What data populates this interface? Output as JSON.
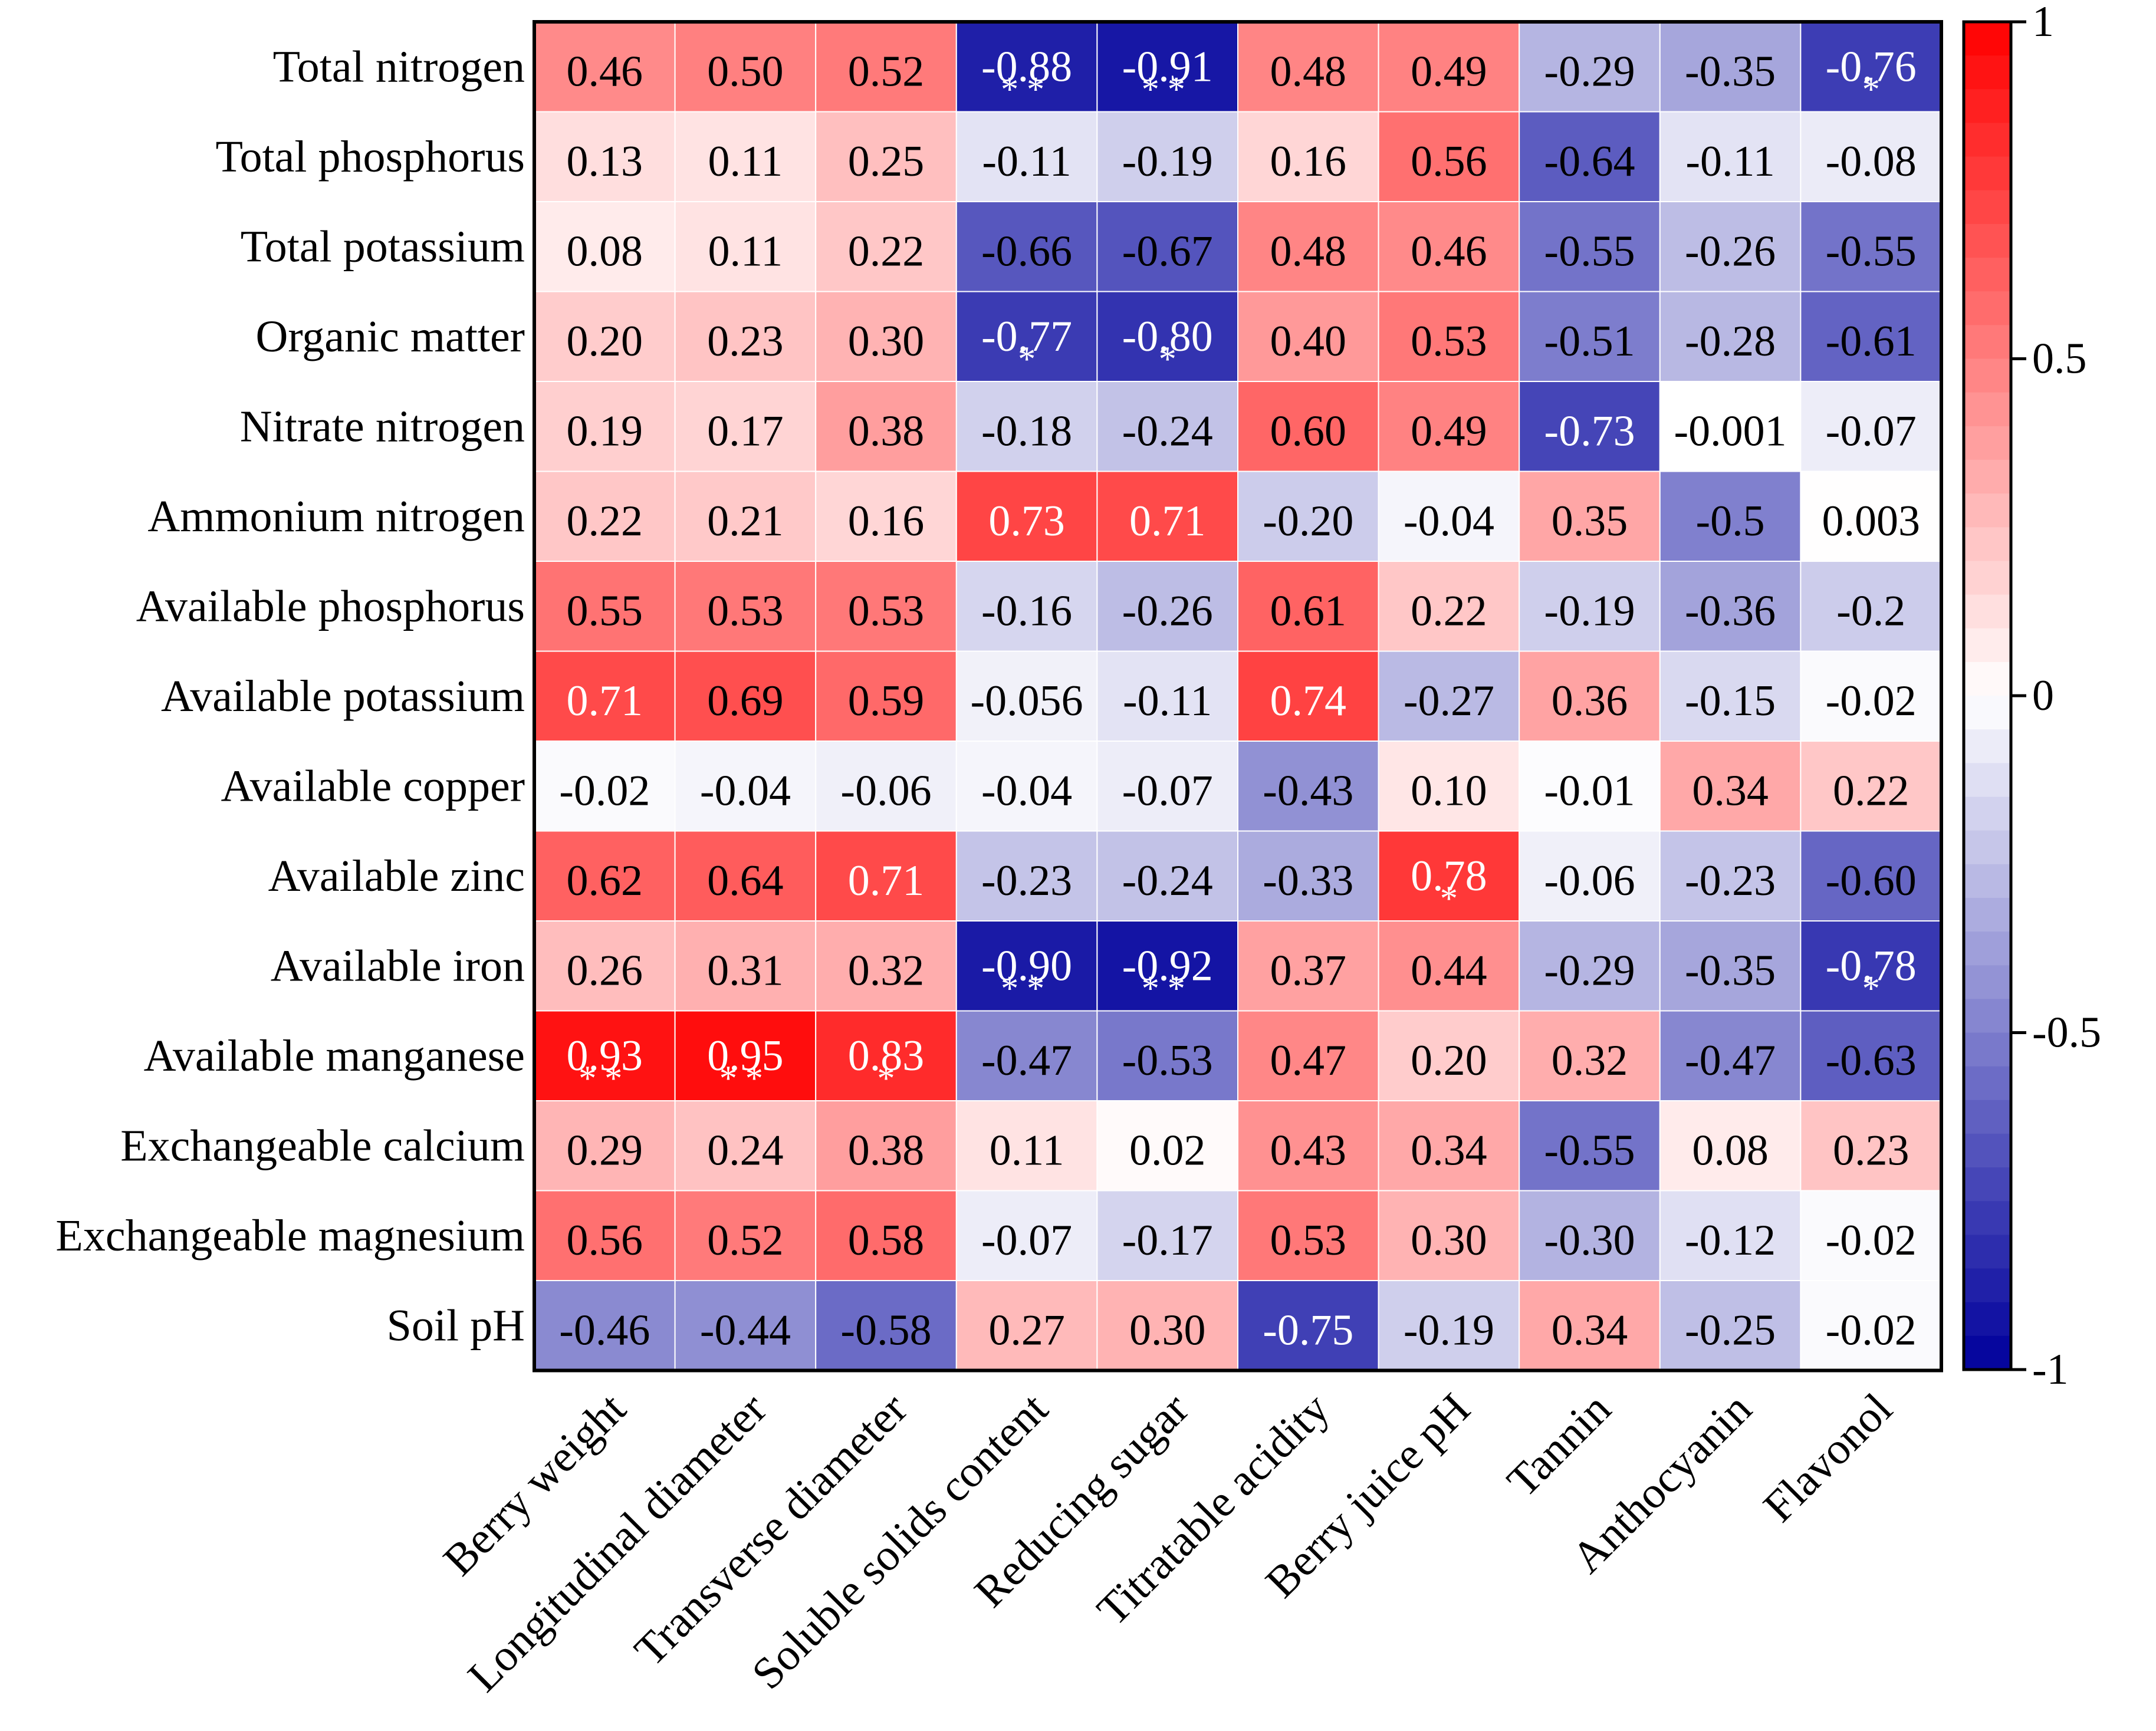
{
  "chart_data": {
    "type": "heatmap",
    "rows": [
      "Total nitrogen",
      "Total phosphorus",
      "Total potassium",
      "Organic matter",
      "Nitrate nitrogen",
      "Ammonium nitrogen",
      "Available phosphorus",
      "Available potassium",
      "Available copper",
      "Available zinc",
      "Available iron",
      "Available manganese",
      "Exchangeable calcium",
      "Exchangeable magnesium",
      "Soil pH"
    ],
    "columns": [
      "Berry weight",
      "Longitudinal diameter",
      "Transverse diameter",
      "Soluble solids content",
      "Reducing sugar",
      "Titratable acidity",
      "Berry juice pH",
      "Tannin",
      "Anthocyanin",
      "Flavonol"
    ],
    "labels": [
      [
        "0.46",
        "0.50",
        "0.52",
        "-0.88",
        "-0.91",
        "0.48",
        "0.49",
        "-0.29",
        "-0.35",
        "-0.76"
      ],
      [
        "0.13",
        "0.11",
        "0.25",
        "-0.11",
        "-0.19",
        "0.16",
        "0.56",
        "-0.64",
        "-0.11",
        "-0.08"
      ],
      [
        "0.08",
        "0.11",
        "0.22",
        "-0.66",
        "-0.67",
        "0.48",
        "0.46",
        "-0.55",
        "-0.26",
        "-0.55"
      ],
      [
        "0.20",
        "0.23",
        "0.30",
        "-0.77",
        "-0.80",
        "0.40",
        "0.53",
        "-0.51",
        "-0.28",
        "-0.61"
      ],
      [
        "0.19",
        "0.17",
        "0.38",
        "-0.18",
        "-0.24",
        "0.60",
        "0.49",
        "-0.73",
        "-0.001",
        "-0.07"
      ],
      [
        "0.22",
        "0.21",
        "0.16",
        "0.73",
        "0.71",
        "-0.20",
        "-0.04",
        "0.35",
        "-0.5",
        "0.003"
      ],
      [
        "0.55",
        "0.53",
        "0.53",
        "-0.16",
        "-0.26",
        "0.61",
        "0.22",
        "-0.19",
        "-0.36",
        "-0.2"
      ],
      [
        "0.71",
        "0.69",
        "0.59",
        "-0.056",
        "-0.11",
        "0.74",
        "-0.27",
        "0.36",
        "-0.15",
        "-0.02"
      ],
      [
        "-0.02",
        "-0.04",
        "-0.06",
        "-0.04",
        "-0.07",
        "-0.43",
        "0.10",
        "-0.01",
        "0.34",
        "0.22"
      ],
      [
        "0.62",
        "0.64",
        "0.71",
        "-0.23",
        "-0.24",
        "-0.33",
        "0.78",
        "-0.06",
        "-0.23",
        "-0.60"
      ],
      [
        "0.26",
        "0.31",
        "0.32",
        "-0.90",
        "-0.92",
        "0.37",
        "0.44",
        "-0.29",
        "-0.35",
        "-0.78"
      ],
      [
        "0.93",
        "0.95",
        "0.83",
        "-0.47",
        "-0.53",
        "0.47",
        "0.20",
        "0.32",
        "-0.47",
        "-0.63"
      ],
      [
        "0.29",
        "0.24",
        "0.38",
        "0.11",
        "0.02",
        "0.43",
        "0.34",
        "-0.55",
        "0.08",
        "0.23"
      ],
      [
        "0.56",
        "0.52",
        "0.58",
        "-0.07",
        "-0.17",
        "0.53",
        "0.30",
        "-0.30",
        "-0.12",
        "-0.02"
      ],
      [
        "-0.46",
        "-0.44",
        "-0.58",
        "0.27",
        "0.30",
        "-0.75",
        "-0.19",
        "0.34",
        "-0.25",
        "-0.02"
      ]
    ],
    "significance": [
      [
        "",
        "",
        "",
        "**",
        "**",
        "",
        "",
        "",
        "",
        "*"
      ],
      [
        "",
        "",
        "",
        "",
        "",
        "",
        "",
        "",
        "",
        ""
      ],
      [
        "",
        "",
        "",
        "",
        "",
        "",
        "",
        "",
        "",
        ""
      ],
      [
        "",
        "",
        "",
        "*",
        "*",
        "",
        "",
        "",
        "",
        ""
      ],
      [
        "",
        "",
        "",
        "",
        "",
        "",
        "",
        "",
        "",
        ""
      ],
      [
        "",
        "",
        "",
        "",
        "",
        "",
        "",
        "",
        "",
        ""
      ],
      [
        "",
        "",
        "",
        "",
        "",
        "",
        "",
        "",
        "",
        ""
      ],
      [
        "",
        "",
        "",
        "",
        "",
        "",
        "",
        "",
        "",
        ""
      ],
      [
        "",
        "",
        "",
        "",
        "",
        "",
        "",
        "",
        "",
        ""
      ],
      [
        "",
        "",
        "",
        "",
        "",
        "",
        "*",
        "",
        "",
        ""
      ],
      [
        "",
        "",
        "",
        "**",
        "**",
        "",
        "",
        "",
        "",
        "*"
      ],
      [
        "**",
        "**",
        "*",
        "",
        "",
        "",
        "",
        "",
        "",
        ""
      ],
      [
        "",
        "",
        "",
        "",
        "",
        "",
        "",
        "",
        "",
        ""
      ],
      [
        "",
        "",
        "",
        "",
        "",
        "",
        "",
        "",
        "",
        ""
      ],
      [
        "",
        "",
        "",
        "",
        "",
        "",
        "",
        "",
        "",
        ""
      ]
    ],
    "colorbar": {
      "min": -1,
      "max": 1,
      "ticks": [
        1,
        0.5,
        0,
        -0.5,
        -1
      ],
      "tick_labels": [
        "1",
        "0.5",
        "0",
        "-0.5",
        "-1"
      ],
      "low_color": "#00009c",
      "mid_color": "#ffffff",
      "high_color": "#ff0000"
    }
  }
}
